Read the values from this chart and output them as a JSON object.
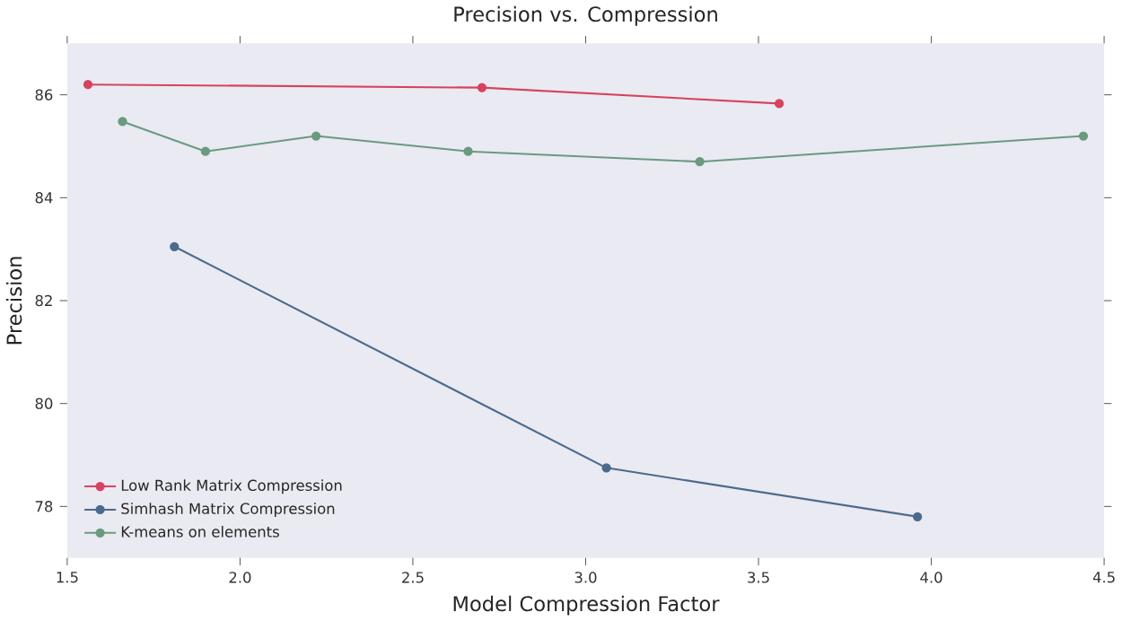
{
  "chart_data": {
    "type": "line",
    "title": "Precision vs. Compression",
    "xlabel": "Model Compression Factor",
    "ylabel": "Precision",
    "xlim": [
      1.5,
      4.5
    ],
    "xticks": [
      1.5,
      {
        "value": 2,
        "label": "2.0"
      },
      2.5,
      {
        "value": 3,
        "label": "3.0"
      },
      3.5,
      {
        "value": 4,
        "label": "4.0"
      },
      4.5
    ],
    "ylim": [
      77,
      87
    ],
    "yticks": [
      78,
      80,
      82,
      84,
      86
    ],
    "marker": "circle",
    "legend": "bottom left",
    "grid": false,
    "series": [
      {
        "name": "Low Rank Matrix Compression",
        "color": "#d6435f",
        "x": [
          1.56,
          2.7,
          3.56
        ],
        "values": [
          86.2,
          86.14,
          85.83
        ]
      },
      {
        "name": "Simhash Matrix Compression",
        "color": "#4c6a8c",
        "x": [
          1.81,
          3.06,
          3.96
        ],
        "values": [
          83.05,
          78.75,
          77.8
        ]
      },
      {
        "name": "K-means on elements",
        "color": "#6a9a80",
        "x": [
          1.66,
          1.9,
          2.22,
          2.66,
          3.33,
          4.44
        ],
        "values": [
          85.48,
          84.9,
          85.2,
          84.9,
          84.7,
          85.2
        ]
      }
    ]
  }
}
